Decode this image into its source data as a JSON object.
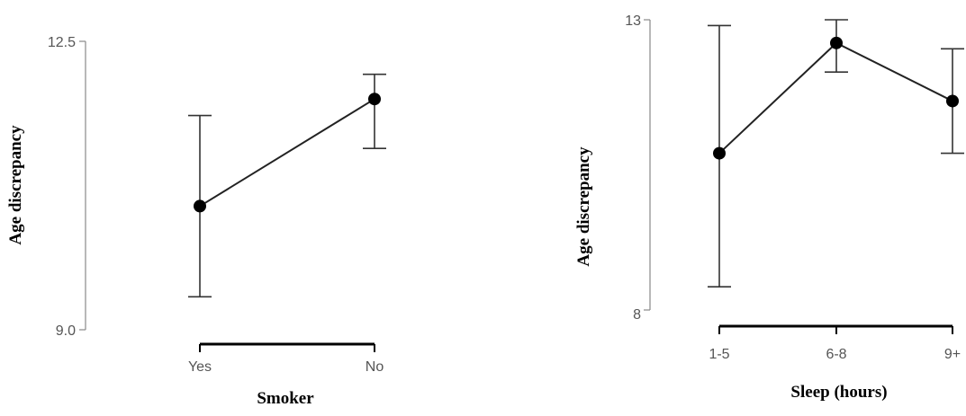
{
  "chart_data": [
    {
      "type": "line",
      "title": "",
      "xlabel": "Smoker",
      "ylabel": "Age discrepancy",
      "categories": [
        "Yes",
        "No"
      ],
      "series": [
        {
          "values": [
            10.5,
            11.8
          ],
          "lower": [
            9.4,
            11.2
          ],
          "upper": [
            11.6,
            12.1
          ]
        }
      ],
      "ylim": [
        9.0,
        12.5
      ],
      "yticks": [
        9.0,
        12.5
      ],
      "ytick_labels": [
        "9.0",
        "12.5"
      ],
      "grid": false,
      "legend": "none"
    },
    {
      "type": "line",
      "title": "",
      "xlabel": "Sleep (hours)",
      "ylabel": "Age discrepancy",
      "categories": [
        "1-5",
        "6-8",
        "9+"
      ],
      "series": [
        {
          "values": [
            10.7,
            12.6,
            11.6
          ],
          "lower": [
            8.4,
            12.1,
            10.7
          ],
          "upper": [
            12.9,
            13.0,
            12.5
          ]
        }
      ],
      "ylim": [
        8,
        13
      ],
      "yticks": [
        8,
        13
      ],
      "ytick_labels": [
        "8",
        "13"
      ],
      "grid": false,
      "legend": "none"
    }
  ]
}
